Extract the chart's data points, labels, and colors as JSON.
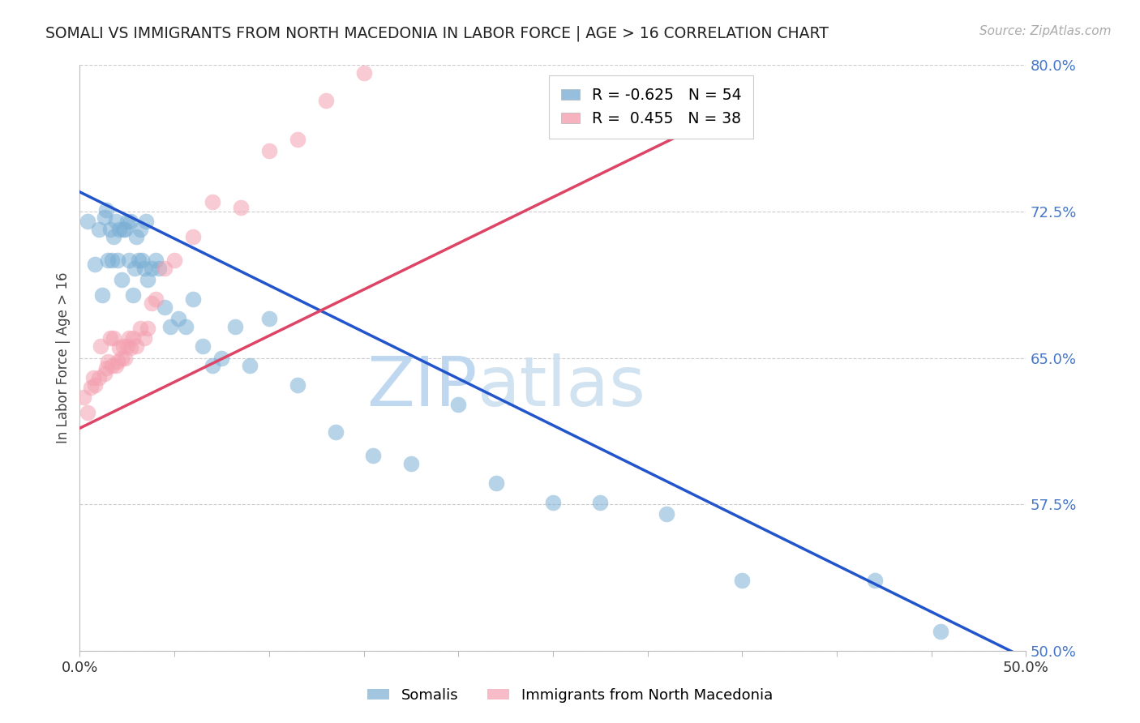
{
  "title": "SOMALI VS IMMIGRANTS FROM NORTH MACEDONIA IN LABOR FORCE | AGE > 16 CORRELATION CHART",
  "source": "Source: ZipAtlas.com",
  "ylabel": "In Labor Force | Age > 16",
  "xmin": 0.0,
  "xmax": 0.5,
  "ymin": 0.5,
  "ymax": 0.8,
  "yticks": [
    0.5,
    0.575,
    0.65,
    0.725,
    0.8
  ],
  "ytick_labels": [
    "50.0%",
    "57.5%",
    "65.0%",
    "72.5%",
    "80.0%"
  ],
  "xticks": [
    0.0,
    0.05,
    0.1,
    0.15,
    0.2,
    0.25,
    0.3,
    0.35,
    0.4,
    0.45,
    0.5
  ],
  "xtick_labels": [
    "0.0%",
    "",
    "",
    "",
    "",
    "",
    "",
    "",
    "",
    "",
    "50.0%"
  ],
  "blue_R": -0.625,
  "blue_N": 54,
  "pink_R": 0.455,
  "pink_N": 38,
  "blue_color": "#7bafd4",
  "pink_color": "#f4a0b0",
  "blue_line_color": "#2255cc",
  "pink_line_color": "#dd4466",
  "watermark": "ZIPatlas",
  "legend_label_blue": "Somalis",
  "legend_label_pink": "Immigrants from North Macedonia",
  "blue_scatter_x": [
    0.004,
    0.008,
    0.01,
    0.012,
    0.013,
    0.014,
    0.015,
    0.016,
    0.017,
    0.018,
    0.019,
    0.02,
    0.021,
    0.022,
    0.023,
    0.024,
    0.025,
    0.026,
    0.027,
    0.028,
    0.029,
    0.03,
    0.031,
    0.032,
    0.033,
    0.034,
    0.035,
    0.036,
    0.038,
    0.04,
    0.042,
    0.045,
    0.048,
    0.052,
    0.056,
    0.06,
    0.065,
    0.07,
    0.075,
    0.082,
    0.09,
    0.1,
    0.115,
    0.135,
    0.155,
    0.175,
    0.2,
    0.22,
    0.25,
    0.275,
    0.31,
    0.35,
    0.42,
    0.455
  ],
  "blue_scatter_y": [
    0.72,
    0.698,
    0.716,
    0.682,
    0.722,
    0.726,
    0.7,
    0.716,
    0.7,
    0.712,
    0.72,
    0.7,
    0.716,
    0.69,
    0.716,
    0.716,
    0.72,
    0.7,
    0.72,
    0.682,
    0.696,
    0.712,
    0.7,
    0.716,
    0.7,
    0.696,
    0.72,
    0.69,
    0.696,
    0.7,
    0.696,
    0.676,
    0.666,
    0.67,
    0.666,
    0.68,
    0.656,
    0.646,
    0.65,
    0.666,
    0.646,
    0.67,
    0.636,
    0.612,
    0.6,
    0.596,
    0.626,
    0.586,
    0.576,
    0.576,
    0.57,
    0.536,
    0.536,
    0.51
  ],
  "pink_scatter_x": [
    0.002,
    0.004,
    0.006,
    0.007,
    0.008,
    0.01,
    0.011,
    0.013,
    0.014,
    0.015,
    0.016,
    0.017,
    0.018,
    0.019,
    0.02,
    0.021,
    0.022,
    0.023,
    0.024,
    0.025,
    0.026,
    0.027,
    0.028,
    0.03,
    0.032,
    0.034,
    0.036,
    0.038,
    0.04,
    0.045,
    0.05,
    0.06,
    0.07,
    0.085,
    0.1,
    0.115,
    0.13,
    0.15
  ],
  "pink_scatter_y": [
    0.63,
    0.622,
    0.635,
    0.64,
    0.636,
    0.64,
    0.656,
    0.642,
    0.645,
    0.648,
    0.66,
    0.646,
    0.66,
    0.646,
    0.648,
    0.655,
    0.65,
    0.656,
    0.65,
    0.656,
    0.66,
    0.655,
    0.66,
    0.656,
    0.665,
    0.66,
    0.665,
    0.678,
    0.68,
    0.696,
    0.7,
    0.712,
    0.73,
    0.727,
    0.756,
    0.762,
    0.782,
    0.796
  ],
  "blue_line_x0": 0.0,
  "blue_line_x1": 0.5,
  "blue_line_y0": 0.735,
  "blue_line_y1": 0.496,
  "pink_line_x0": 0.0,
  "pink_line_x1": 0.355,
  "pink_line_y0": 0.614,
  "pink_line_y1": 0.782,
  "title_fontsize": 13.5,
  "tick_fontsize": 13,
  "right_tick_color": "#4477cc",
  "grid_color": "#cccccc",
  "spine_color": "#bbbbbb"
}
